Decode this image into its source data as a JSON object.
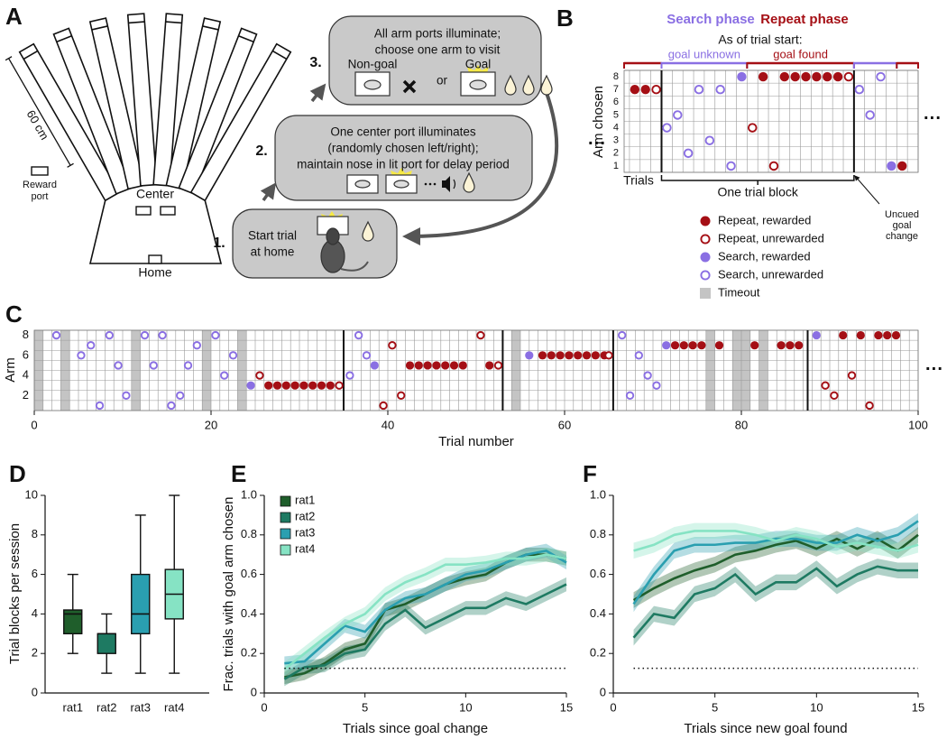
{
  "panel_a": {
    "letter": "A",
    "maze": {
      "scale": "60 cm",
      "reward_port": [
        "Reward",
        "port"
      ],
      "center": "Center",
      "home": "Home"
    },
    "steps": [
      {
        "number": "1.",
        "lines": [
          "Start trial",
          "at home"
        ]
      },
      {
        "number": "2.",
        "lines": [
          "One center port illuminates",
          "(randomly chosen left/right);",
          "maintain nose in lit port for delay period"
        ]
      },
      {
        "number": "3.",
        "lines": [
          "All arm ports illuminate;",
          "choose one arm to visit"
        ],
        "non_goal": "Non-goal",
        "or": "or",
        "goal": "Goal"
      }
    ]
  },
  "chart_data": [
    {
      "panel": "B",
      "type": "trial_grid",
      "phase_labels": {
        "search": "Search phase",
        "repeat": "Repeat phase"
      },
      "subtitle": "As of trial start:",
      "ylabel": "Arm chosen",
      "xlabel": "Trials",
      "block_label": "One trial block",
      "annotation": [
        "Uncued",
        "goal",
        "change"
      ],
      "continuation": "···",
      "colors": {
        "search": "#8a6fe3",
        "repeat": "#a50f15",
        "timeout": "#c4c4c4"
      },
      "xlim": [
        -0.5,
        27
      ],
      "ylim": [
        0.5,
        8.5
      ],
      "yticks": [
        1,
        2,
        3,
        4,
        5,
        6,
        7,
        8
      ],
      "block_boundaries": [
        3,
        21
      ],
      "phases": [
        {
          "kind": "repeat",
          "span": [
            -0.5,
            3
          ]
        },
        {
          "kind": "search",
          "span": [
            3,
            11
          ],
          "caption": "goal unknown"
        },
        {
          "kind": "repeat",
          "span": [
            11,
            21
          ],
          "caption": "goal found"
        },
        {
          "kind": "search",
          "span": [
            21,
            25
          ]
        },
        {
          "kind": "repeat",
          "span": [
            25,
            27
          ]
        }
      ],
      "points": {
        "repeat_rewarded": {
          "x": [
            0.5,
            1.5,
            12.5,
            14.5,
            15.5,
            16.5,
            17.5,
            18.5,
            19.5,
            25.5
          ],
          "y": [
            7,
            7,
            8,
            8,
            8,
            8,
            8,
            8,
            8,
            1
          ]
        },
        "repeat_unrewarded": {
          "x": [
            2.5,
            11.5,
            13.5,
            20.5
          ],
          "y": [
            7,
            4,
            1,
            8
          ]
        },
        "search_rewarded": {
          "x": [
            10.5,
            24.5
          ],
          "y": [
            8,
            1
          ]
        },
        "search_unrewarded": {
          "x": [
            3.5,
            4.5,
            5.5,
            6.5,
            7.5,
            8.5,
            9.5,
            21.5,
            22.5,
            23.5
          ],
          "y": [
            4,
            5,
            2,
            7,
            3,
            7,
            1,
            7,
            5,
            8
          ]
        }
      },
      "legend": {
        "repeat_rewarded": "Repeat, rewarded",
        "repeat_unrewarded": "Repeat, unrewarded",
        "search_rewarded": "Search, rewarded",
        "search_unrewarded": "Search, unrewarded",
        "timeout": "Timeout"
      }
    },
    {
      "panel": "C",
      "type": "trial_grid",
      "ylabel": "Arm",
      "xlabel": "Trial number",
      "continuation": "···",
      "colors": {
        "search": "#8a6fe3",
        "repeat": "#a50f15",
        "timeout": "#c4c4c4"
      },
      "xlim": [
        0,
        100
      ],
      "ylim": [
        0.5,
        8.5
      ],
      "xticks": [
        0,
        20,
        40,
        60,
        80,
        100
      ],
      "yticks": [
        2,
        4,
        6,
        8
      ],
      "timeouts": [
        0.5,
        3.5,
        11.5,
        19.5,
        23.5,
        54.5,
        76.5,
        79.5,
        80.5,
        82.5
      ],
      "block_boundaries": [
        35,
        53,
        65.5,
        87.5
      ],
      "points": {
        "repeat_rewarded": {
          "x": [
            26.5,
            27.5,
            28.5,
            29.5,
            30.5,
            31.5,
            32.5,
            33.5,
            42.5,
            43.5,
            44.5,
            45.5,
            46.5,
            47.5,
            48.5,
            51.5,
            57.5,
            58.5,
            59.5,
            60.5,
            61.5,
            62.5,
            63.5,
            64.5,
            72.5,
            73.5,
            74.5,
            75.5,
            77.5,
            81.5,
            84.5,
            85.5,
            86.5,
            91.5,
            93.5,
            95.5,
            96.5,
            97.5
          ],
          "y": [
            3,
            3,
            3,
            3,
            3,
            3,
            3,
            3,
            5,
            5,
            5,
            5,
            5,
            5,
            5,
            5,
            6,
            6,
            6,
            6,
            6,
            6,
            6,
            6,
            7,
            7,
            7,
            7,
            7,
            7,
            7,
            7,
            7,
            8,
            8,
            8,
            8,
            8
          ]
        },
        "repeat_unrewarded": {
          "x": [
            25.5,
            34.5,
            39.5,
            40.5,
            41.5,
            50.5,
            52.5,
            65,
            89.5,
            90.5,
            92.5,
            94.5
          ],
          "y": [
            4,
            3,
            1,
            7,
            2,
            8,
            5,
            6,
            3,
            2,
            4,
            1
          ]
        },
        "search_rewarded": {
          "x": [
            24.5,
            38.5,
            56,
            71.5,
            88.5
          ],
          "y": [
            3,
            5,
            6,
            7,
            8
          ]
        },
        "search_unrewarded": {
          "x": [
            2.5,
            5.3,
            6.4,
            7.4,
            8.5,
            9.5,
            10.4,
            12.5,
            13.5,
            14.5,
            15.5,
            16.5,
            17.4,
            18.4,
            20.5,
            21.5,
            22.5,
            35.7,
            36.7,
            37.6,
            66.5,
            67.4,
            68.4,
            69.4,
            70.4
          ],
          "y": [
            8,
            6,
            7,
            1,
            8,
            5,
            2,
            8,
            5,
            8,
            1,
            2,
            5,
            7,
            8,
            4,
            6,
            4,
            8,
            6,
            8,
            2,
            6,
            4,
            3
          ]
        }
      }
    },
    {
      "panel": "D",
      "type": "box",
      "ylabel": "Trial blocks per session",
      "categories": [
        "rat1",
        "rat2",
        "rat3",
        "rat4"
      ],
      "colors": [
        "#1f5e2b",
        "#1e7a62",
        "#2a9fb0",
        "#86e3c4"
      ],
      "whisker_low": [
        2,
        1,
        1,
        1
      ],
      "q1": [
        3,
        2,
        3,
        3.75
      ],
      "median": [
        4,
        3,
        4,
        5
      ],
      "q3": [
        4.2,
        3,
        6,
        6.25
      ],
      "whisker_high": [
        6,
        4,
        9,
        10
      ],
      "ylim": [
        0,
        10
      ],
      "yticks": [
        0,
        2,
        4,
        6,
        8,
        10
      ]
    },
    {
      "panel": "E",
      "type": "line",
      "ylabel": "Frac. trials with goal arm chosen",
      "xlabel": "Trials since goal change",
      "x": [
        1,
        2,
        3,
        4,
        5,
        6,
        7,
        8,
        9,
        10,
        11,
        12,
        13,
        14,
        15
      ],
      "series": [
        {
          "name": "rat1",
          "color": "#1f5e2b",
          "values": [
            0.08,
            0.1,
            0.15,
            0.22,
            0.25,
            0.42,
            0.45,
            0.5,
            0.55,
            0.58,
            0.6,
            0.66,
            0.7,
            0.7,
            0.68
          ],
          "error": 0.035
        },
        {
          "name": "rat2",
          "color": "#1e7a62",
          "values": [
            0.07,
            0.13,
            0.14,
            0.2,
            0.22,
            0.35,
            0.42,
            0.33,
            0.38,
            0.43,
            0.43,
            0.48,
            0.45,
            0.5,
            0.55
          ],
          "error": 0.035
        },
        {
          "name": "rat3",
          "color": "#2a9fb0",
          "values": [
            0.15,
            0.16,
            0.25,
            0.34,
            0.31,
            0.42,
            0.48,
            0.5,
            0.55,
            0.6,
            0.62,
            0.66,
            0.7,
            0.72,
            0.66
          ],
          "error": 0.035
        },
        {
          "name": "rat4",
          "color": "#86e3c4",
          "values": [
            0.12,
            0.2,
            0.28,
            0.35,
            0.4,
            0.5,
            0.56,
            0.6,
            0.65,
            0.65,
            0.66,
            0.68,
            0.68,
            0.7,
            0.68
          ],
          "error": 0.035
        }
      ],
      "chance": 0.125,
      "legend": "upper left",
      "xlim": [
        0,
        15
      ],
      "ylim": [
        0,
        1
      ],
      "xticks": [
        0,
        5,
        10,
        15
      ],
      "yticks": [
        0,
        0.2,
        0.4,
        0.6,
        0.8,
        {
          "value": 1,
          "label": "1.0"
        }
      ]
    },
    {
      "panel": "F",
      "type": "line",
      "xlabel": "Trials since new goal found",
      "x": [
        1,
        2,
        3,
        4,
        5,
        6,
        7,
        8,
        9,
        10,
        11,
        12,
        13,
        14,
        15
      ],
      "series": [
        {
          "color": "#1f5e2b",
          "values": [
            0.47,
            0.53,
            0.58,
            0.62,
            0.65,
            0.7,
            0.72,
            0.75,
            0.77,
            0.73,
            0.78,
            0.73,
            0.78,
            0.72,
            0.8
          ],
          "error": 0.04
        },
        {
          "color": "#1e7a62",
          "values": [
            0.28,
            0.4,
            0.38,
            0.5,
            0.53,
            0.6,
            0.5,
            0.56,
            0.56,
            0.63,
            0.54,
            0.6,
            0.64,
            0.62,
            0.62
          ],
          "error": 0.04
        },
        {
          "color": "#2a9fb0",
          "values": [
            0.45,
            0.6,
            0.72,
            0.75,
            0.75,
            0.76,
            0.76,
            0.78,
            0.78,
            0.76,
            0.76,
            0.8,
            0.77,
            0.8,
            0.87
          ],
          "error": 0.04
        },
        {
          "color": "#86e3c4",
          "values": [
            0.72,
            0.75,
            0.8,
            0.82,
            0.82,
            0.82,
            0.8,
            0.77,
            0.8,
            0.78,
            0.74,
            0.76,
            0.74,
            0.72,
            0.75
          ],
          "error": 0.04
        }
      ],
      "chance": 0.125,
      "xlim": [
        0,
        15
      ],
      "ylim": [
        0,
        1
      ],
      "xticks": [
        0,
        5,
        10,
        15
      ],
      "yticks": [
        0,
        0.2,
        0.4,
        0.6,
        0.8,
        {
          "value": 1,
          "label": "1.0"
        }
      ]
    }
  ]
}
